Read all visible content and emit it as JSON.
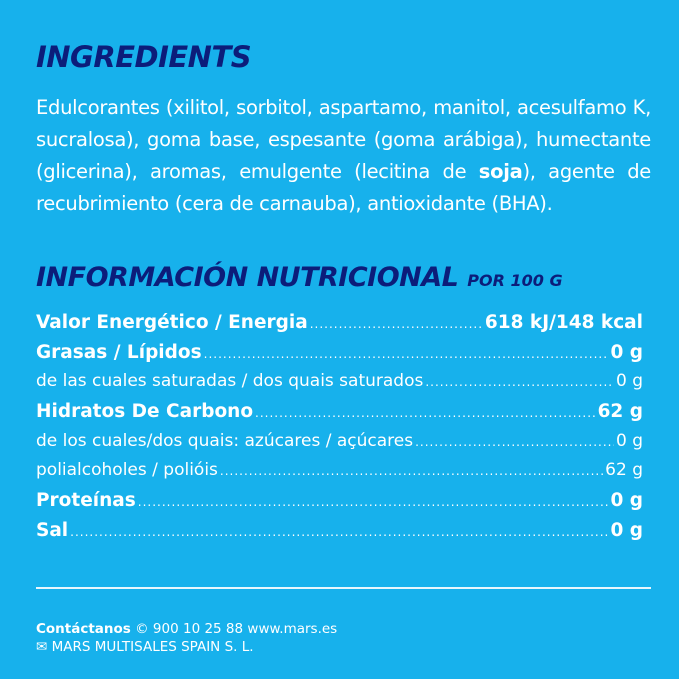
{
  "colors": {
    "background": "#17b1ec",
    "heading": "#0c1d7a",
    "text": "#ffffff"
  },
  "ingredients": {
    "title": "INGREDIENTS",
    "text_before": "Edulcorantes (xilitol, sorbitol, aspartamo, manitol, acesulfamo K, sucralosa), goma base, espesante (goma arábiga), humectante (glicerina), aromas, emulgente (lecitina de ",
    "text_bold": "soja",
    "text_after": "), agente de recubrimiento (cera de carnauba), antioxidante (BHA)."
  },
  "nutrition": {
    "title": "INFORMACIÓN NUTRICIONAL",
    "subtitle": "POR 100 G",
    "rows": [
      {
        "label": "Valor Energético / Energia",
        "value": "618 kJ/148 kcal",
        "bold": true
      },
      {
        "label": "Grasas / Lípidos",
        "value": "0 g",
        "bold": true
      },
      {
        "label": "de las cuales saturadas / dos quais saturados",
        "value": "0 g",
        "bold": false
      },
      {
        "label": "Hidratos De Carbono",
        "value": "62 g",
        "bold": true
      },
      {
        "label": "de los cuales/dos quais: azúcares / açúcares",
        "value": "0 g",
        "bold": false
      },
      {
        "label": "polialcoholes / polióis",
        "value": "62 g",
        "bold": false
      },
      {
        "label": "Proteínas",
        "value": "0 g",
        "bold": true
      },
      {
        "label": "Sal",
        "value": "0 g",
        "bold": true
      }
    ]
  },
  "footer": {
    "contact_label": "Contáctanos",
    "phone_icon": "phone-icon",
    "phone": "© 900 10 25 88 www.mars.es",
    "mail_icon": "envelope-icon",
    "company": "✉ MARS MULTISALES SPAIN S. L."
  }
}
